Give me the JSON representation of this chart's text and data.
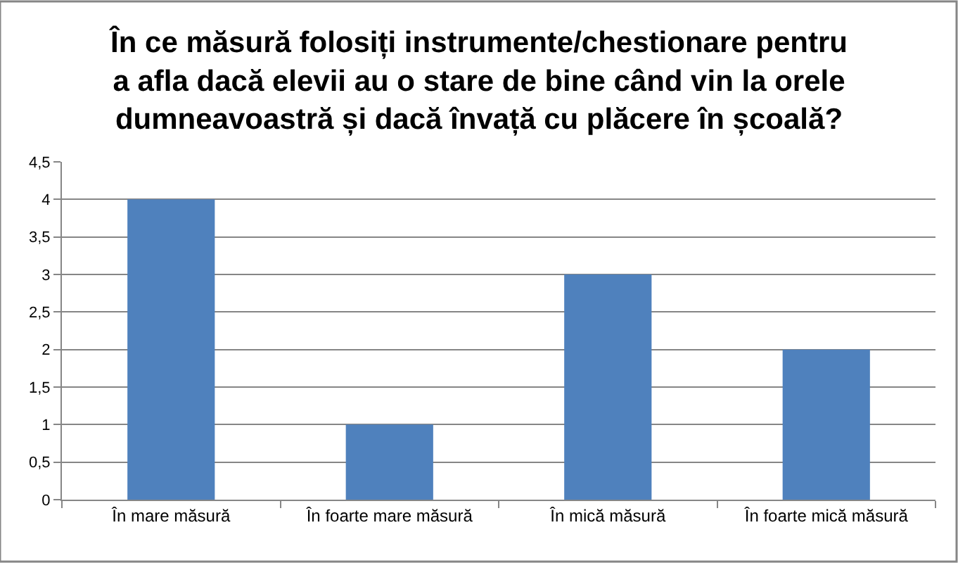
{
  "chart_data": {
    "type": "bar",
    "title": "În ce măsură folosiți instrumente/chestionare pentru\na afla dacă elevii au o stare de bine când vin la orele\ndumneavoastră și dacă învață cu plăcere în școală?",
    "categories": [
      "În mare măsură",
      "În foarte mare măsură",
      "În mică măsură",
      "În foarte mică măsură"
    ],
    "values": [
      4,
      1,
      3,
      2
    ],
    "color": "#4f81bd",
    "ylim": [
      0,
      4.5
    ],
    "yticks": [
      0,
      {
        "value": 0.5,
        "label": "0,5"
      },
      1,
      {
        "value": 1.5,
        "label": "1,5"
      },
      2,
      {
        "value": 2.5,
        "label": "2,5"
      },
      3,
      {
        "value": 3.5,
        "label": "3,5"
      },
      4,
      {
        "value": 4.5,
        "label": "4,5"
      }
    ],
    "grid": "y"
  }
}
